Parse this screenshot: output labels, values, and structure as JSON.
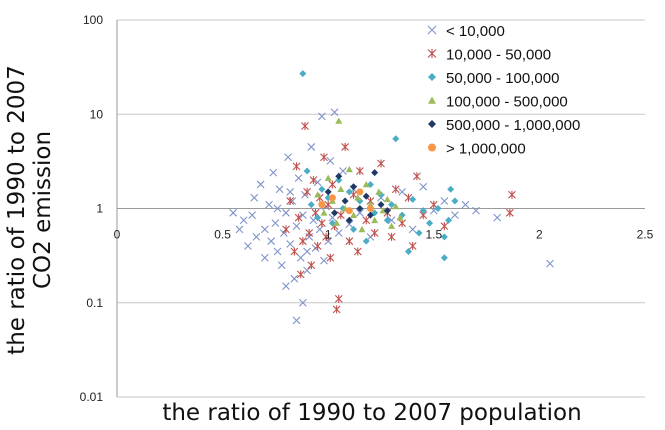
{
  "chart_data": {
    "type": "scatter",
    "title": "",
    "xlabel": "the ratio of 1990 to 2007 population",
    "ylabel_line1": "the ratio of 1990 to 2007",
    "ylabel_line2": "CO2 emission",
    "xlim": [
      0,
      2.5
    ],
    "ylim": [
      0.01,
      100
    ],
    "yscale": "log",
    "x_ticks": [
      {
        "value": 0,
        "label": "0"
      },
      {
        "value": 0.5,
        "label": "0.5"
      },
      {
        "value": 1,
        "label": "1"
      },
      {
        "value": 1.5,
        "label": "1.5"
      },
      {
        "value": 2,
        "label": "2"
      },
      {
        "value": 2.5,
        "label": "2.5"
      }
    ],
    "y_ticks": [
      {
        "value": 0.01,
        "label": "0.01"
      },
      {
        "value": 0.1,
        "label": "0.1"
      },
      {
        "value": 1,
        "label": "1"
      },
      {
        "value": 10,
        "label": "10"
      },
      {
        "value": 100,
        "label": "100"
      }
    ],
    "x_axis_at_y": 1,
    "grid": "horizontal",
    "legend_position": "top-right",
    "series": [
      {
        "name": "< 10,000",
        "marker": "x",
        "color": "#7f93c9",
        "points": [
          [
            0.55,
            0.9
          ],
          [
            0.58,
            0.6
          ],
          [
            0.6,
            0.75
          ],
          [
            0.62,
            0.4
          ],
          [
            0.65,
            1.3
          ],
          [
            0.66,
            0.5
          ],
          [
            0.68,
            1.8
          ],
          [
            0.7,
            0.3
          ],
          [
            0.72,
            1.1
          ],
          [
            0.73,
            0.45
          ],
          [
            0.74,
            2.4
          ],
          [
            0.75,
            0.7
          ],
          [
            0.76,
            0.35
          ],
          [
            0.77,
            1.6
          ],
          [
            0.78,
            0.25
          ],
          [
            0.79,
            0.55
          ],
          [
            0.8,
            0.9
          ],
          [
            0.81,
            3.5
          ],
          [
            0.82,
            0.42
          ],
          [
            0.83,
            1.2
          ],
          [
            0.84,
            0.18
          ],
          [
            0.85,
            0.65
          ],
          [
            0.86,
            2.1
          ],
          [
            0.87,
            0.3
          ],
          [
            0.88,
            0.85
          ],
          [
            0.89,
            1.4
          ],
          [
            0.9,
            0.22
          ],
          [
            0.91,
            0.5
          ],
          [
            0.92,
            4.5
          ],
          [
            0.93,
            0.75
          ],
          [
            0.94,
            0.38
          ],
          [
            0.95,
            1.9
          ],
          [
            0.96,
            0.6
          ],
          [
            0.97,
            9.5
          ],
          [
            0.98,
            0.28
          ],
          [
            0.99,
            1.05
          ],
          [
            1.0,
            0.45
          ],
          [
            1.01,
            3.2
          ],
          [
            1.02,
            0.8
          ],
          [
            1.03,
            10.5
          ],
          [
            1.05,
            0.55
          ],
          [
            1.07,
            2.5
          ],
          [
            1.1,
            0.68
          ],
          [
            1.12,
            1.6
          ],
          [
            1.15,
            0.9
          ],
          [
            1.2,
            0.5
          ],
          [
            1.25,
            1.3
          ],
          [
            1.3,
            0.75
          ],
          [
            1.35,
            1.5
          ],
          [
            1.4,
            0.6
          ],
          [
            1.45,
            1.7
          ],
          [
            1.5,
            0.95
          ],
          [
            1.55,
            1.2
          ],
          [
            1.6,
            0.85
          ],
          [
            1.65,
            1.1
          ],
          [
            1.7,
            0.95
          ],
          [
            1.8,
            0.8
          ],
          [
            2.05,
            0.26
          ],
          [
            0.85,
            0.065
          ],
          [
            0.88,
            0.1
          ],
          [
            0.8,
            0.15
          ],
          [
            0.76,
            1.0
          ],
          [
            0.82,
            1.5
          ],
          [
            0.9,
            0.35
          ],
          [
            0.7,
            0.6
          ],
          [
            0.64,
            0.85
          ]
        ]
      },
      {
        "name": "10,000 - 50,000",
        "marker": "asterisk",
        "color": "#c0504d",
        "points": [
          [
            0.8,
            0.6
          ],
          [
            0.82,
            1.2
          ],
          [
            0.84,
            0.35
          ],
          [
            0.85,
            2.8
          ],
          [
            0.86,
            0.8
          ],
          [
            0.88,
            0.45
          ],
          [
            0.89,
            7.5
          ],
          [
            0.9,
            1.5
          ],
          [
            0.91,
            0.55
          ],
          [
            0.92,
            0.25
          ],
          [
            0.93,
            2.0
          ],
          [
            0.94,
            0.9
          ],
          [
            0.95,
            0.4
          ],
          [
            0.96,
            1.3
          ],
          [
            0.97,
            0.7
          ],
          [
            0.98,
            3.5
          ],
          [
            0.99,
            0.5
          ],
          [
            1.0,
            1.1
          ],
          [
            1.01,
            0.3
          ],
          [
            1.02,
            1.8
          ],
          [
            1.03,
            0.65
          ],
          [
            1.04,
            0.085
          ],
          [
            1.05,
            0.11
          ],
          [
            1.06,
            0.85
          ],
          [
            1.08,
            4.5
          ],
          [
            1.1,
            0.45
          ],
          [
            1.12,
            1.4
          ],
          [
            1.14,
            0.35
          ],
          [
            1.15,
            2.5
          ],
          [
            1.18,
            0.75
          ],
          [
            1.2,
            1.2
          ],
          [
            1.22,
            0.55
          ],
          [
            1.25,
            3.0
          ],
          [
            1.28,
            0.9
          ],
          [
            1.3,
            0.5
          ],
          [
            1.32,
            1.6
          ],
          [
            1.35,
            0.7
          ],
          [
            1.38,
            1.3
          ],
          [
            1.4,
            0.4
          ],
          [
            1.42,
            2.2
          ],
          [
            1.45,
            0.85
          ],
          [
            1.5,
            1.1
          ],
          [
            1.55,
            0.65
          ],
          [
            1.87,
            1.4
          ],
          [
            1.86,
            0.9
          ],
          [
            0.87,
            0.2
          ]
        ]
      },
      {
        "name": "50,000 - 100,000",
        "marker": "diamond",
        "color": "#4bacc6",
        "points": [
          [
            0.88,
            27
          ],
          [
            0.9,
            2.5
          ],
          [
            0.92,
            1.1
          ],
          [
            0.95,
            0.8
          ],
          [
            0.97,
            1.6
          ],
          [
            1.0,
            1.3
          ],
          [
            1.02,
            0.7
          ],
          [
            1.05,
            2.0
          ],
          [
            1.07,
            1.0
          ],
          [
            1.1,
            1.5
          ],
          [
            1.12,
            0.6
          ],
          [
            1.15,
            1.2
          ],
          [
            1.18,
            0.45
          ],
          [
            1.2,
            1.8
          ],
          [
            1.22,
            0.9
          ],
          [
            1.25,
            1.4
          ],
          [
            1.28,
            0.75
          ],
          [
            1.3,
            1.1
          ],
          [
            1.32,
            5.5
          ],
          [
            1.35,
            0.85
          ],
          [
            1.38,
            0.35
          ],
          [
            1.4,
            1.25
          ],
          [
            1.43,
            0.55
          ],
          [
            1.45,
            0.95
          ],
          [
            1.48,
            0.7
          ],
          [
            1.52,
            1.0
          ],
          [
            1.55,
            0.5
          ],
          [
            1.58,
            1.6
          ],
          [
            1.6,
            1.2
          ],
          [
            1.55,
            0.3
          ],
          [
            1.57,
            0.75
          ]
        ]
      },
      {
        "name": "100,000 - 500,000",
        "marker": "triangle",
        "color": "#9bbb59",
        "points": [
          [
            0.95,
            1.4
          ],
          [
            0.98,
            0.9
          ],
          [
            1.0,
            2.1
          ],
          [
            1.02,
            1.2
          ],
          [
            1.04,
            0.7
          ],
          [
            1.06,
            1.6
          ],
          [
            1.08,
            1.0
          ],
          [
            1.1,
            2.6
          ],
          [
            1.12,
            0.85
          ],
          [
            1.14,
            1.3
          ],
          [
            1.16,
            0.6
          ],
          [
            1.18,
            1.8
          ],
          [
            1.2,
            1.1
          ],
          [
            1.22,
            0.75
          ],
          [
            1.24,
            1.5
          ],
          [
            1.26,
            0.95
          ],
          [
            1.28,
            1.25
          ],
          [
            1.3,
            0.65
          ],
          [
            1.32,
            1.05
          ],
          [
            1.34,
            0.8
          ],
          [
            1.05,
            8.5
          ]
        ]
      },
      {
        "name": "500,000 - 1,000,000",
        "marker": "diamond",
        "color": "#1f3864",
        "points": [
          [
            1.0,
            1.5
          ],
          [
            1.03,
            0.9
          ],
          [
            1.05,
            2.2
          ],
          [
            1.08,
            1.2
          ],
          [
            1.1,
            0.75
          ],
          [
            1.12,
            1.7
          ],
          [
            1.15,
            1.0
          ],
          [
            1.18,
            1.35
          ],
          [
            1.2,
            0.85
          ],
          [
            1.22,
            2.4
          ],
          [
            1.25,
            1.1
          ],
          [
            1.28,
            0.95
          ]
        ]
      },
      {
        "name": "> 1,000,000",
        "marker": "circle",
        "color": "#f79646",
        "points": [
          [
            0.97,
            1.1
          ],
          [
            1.02,
            1.3
          ],
          [
            1.1,
            0.95
          ],
          [
            1.15,
            1.5
          ],
          [
            1.2,
            1.0
          ]
        ]
      }
    ]
  }
}
